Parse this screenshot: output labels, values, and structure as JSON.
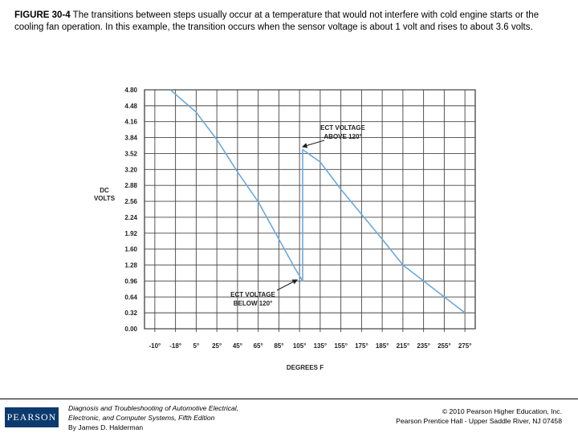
{
  "caption": {
    "figure_label": "FIGURE 30-4",
    "text": "The transitions between steps usually occur at a temperature that would not interfere with cold engine starts or the cooling fan operation. In this example, the transition occurs when the sensor voltage is about 1 volt and rises to about 3.6 volts."
  },
  "chart_data": {
    "type": "line",
    "title": "",
    "xlabel": "DEGREES F",
    "ylabel": "DC VOLTS",
    "x_tick_labels": [
      "-10°",
      "-18°",
      "5°",
      "25°",
      "45°",
      "65°",
      "85°",
      "105°",
      "135°",
      "155°",
      "175°",
      "185°",
      "215°",
      "235°",
      "255°",
      "275°"
    ],
    "y_ticks": [
      0.0,
      0.32,
      0.64,
      0.96,
      1.28,
      1.6,
      1.92,
      2.24,
      2.56,
      2.88,
      3.2,
      3.52,
      3.84,
      4.16,
      4.48,
      4.8
    ],
    "y_tick_labels": [
      "0.00",
      "0.32",
      "0.64",
      "0.96",
      "1.28",
      "1.60",
      "1.92",
      "2.24",
      "2.56",
      "2.88",
      "3.20",
      "3.52",
      "3.84",
      "4.16",
      "4.48",
      "4.80"
    ],
    "ylim": [
      0,
      4.8
    ],
    "grid": true,
    "series": [
      {
        "color": "#6aa9dd",
        "points": [
          {
            "x_index": 0.75,
            "y": 4.8
          },
          {
            "x_index": 2,
            "y": 4.35
          },
          {
            "x_index": 3,
            "y": 3.8
          },
          {
            "x_index": 4,
            "y": 3.15
          },
          {
            "x_index": 5,
            "y": 2.55
          },
          {
            "x_index": 6,
            "y": 1.8
          },
          {
            "x_index": 6.8,
            "y": 1.2
          },
          {
            "x_index": 7.15,
            "y": 0.96
          },
          {
            "x_index": 7.15,
            "y": 3.6
          },
          {
            "x_index": 8,
            "y": 3.35
          },
          {
            "x_index": 9,
            "y": 2.8
          },
          {
            "x_index": 10,
            "y": 2.3
          },
          {
            "x_index": 11,
            "y": 1.8
          },
          {
            "x_index": 12,
            "y": 1.28
          },
          {
            "x_index": 13,
            "y": 0.96
          },
          {
            "x_index": 14,
            "y": 0.64
          },
          {
            "x_index": 15,
            "y": 0.32
          }
        ]
      }
    ],
    "annotations": [
      {
        "lines": [
          "ECT VOLTAGE",
          "ABOVE 120°"
        ]
      },
      {
        "lines": [
          "ECT VOLTAGE",
          "BELOW 120°"
        ]
      }
    ]
  },
  "footer": {
    "logo_text": "PEARSON",
    "book_line1": "Diagnosis and Troubleshooting of Automotive Electrical,",
    "book_line2": "Electronic, and Computer Systems, Fifth Edition",
    "book_line3": "By James D. Halderman",
    "copyright_line1": "© 2010 Pearson Higher Education, Inc.",
    "copyright_line2": "Pearson Prentice Hall - Upper Saddle River, NJ 07458"
  }
}
